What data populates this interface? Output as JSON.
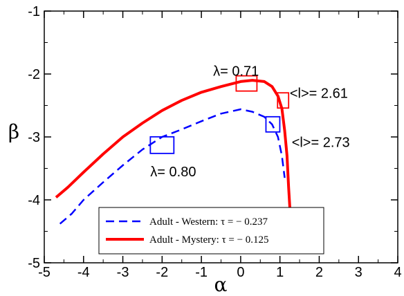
{
  "chart_data": {
    "type": "line",
    "title": "",
    "xlabel": "α",
    "ylabel": "β",
    "xlim": [
      -5,
      4
    ],
    "ylim": [
      -5,
      -1
    ],
    "xticks": [
      -5,
      -4,
      -3,
      -2,
      -1,
      0,
      1,
      2,
      3,
      4
    ],
    "yticks": [
      -5,
      -4,
      -3,
      -2,
      -1
    ],
    "xtick_labels": [
      "-5",
      "-4",
      "-3",
      "-2",
      "-1",
      "0",
      "1",
      "2",
      "3",
      "4"
    ],
    "ytick_labels": [
      "-5",
      "-4",
      "-3",
      "-2",
      "-1"
    ],
    "grid": false,
    "legend_position": "bottom-center",
    "series": [
      {
        "name": "Adult - Western: τ = − 0.237",
        "color": "#0000ff",
        "style": "dashed",
        "x": [
          -4.6,
          -4.3,
          -4.0,
          -3.5,
          -3.0,
          -2.5,
          -2.0,
          -1.5,
          -1.0,
          -0.5,
          0.0,
          0.3,
          0.6,
          0.8,
          0.95,
          1.05,
          1.12
        ],
        "y": [
          -4.38,
          -4.22,
          -4.0,
          -3.72,
          -3.45,
          -3.2,
          -3.0,
          -2.88,
          -2.75,
          -2.63,
          -2.56,
          -2.6,
          -2.68,
          -2.8,
          -3.0,
          -3.3,
          -3.65
        ]
      },
      {
        "name": "Adult - Mystery: τ = − 0.125",
        "color": "#ff0000",
        "style": "solid",
        "x": [
          -4.7,
          -4.4,
          -4.0,
          -3.5,
          -3.0,
          -2.5,
          -2.0,
          -1.5,
          -1.0,
          -0.5,
          0.0,
          0.3,
          0.6,
          0.8,
          0.95,
          1.05,
          1.12,
          1.18,
          1.22,
          1.26
        ],
        "y": [
          -3.96,
          -3.8,
          -3.56,
          -3.27,
          -3.0,
          -2.78,
          -2.58,
          -2.42,
          -2.29,
          -2.2,
          -2.12,
          -2.1,
          -2.12,
          -2.2,
          -2.35,
          -2.55,
          -2.9,
          -3.3,
          -3.8,
          -4.2
        ]
      }
    ],
    "annotations": [
      {
        "text": "λ= 0.71",
        "x": -0.7,
        "y": -1.95
      },
      {
        "text": "<l>= 2.61",
        "x": 1.25,
        "y": -2.3
      },
      {
        "text": "<l>= 2.73",
        "x": 1.3,
        "y": -3.08
      },
      {
        "text": "λ= 0.80",
        "x": -2.3,
        "y": -3.55
      }
    ],
    "markers": [
      {
        "x": 0.15,
        "y": -2.15,
        "color": "#ff0000"
      },
      {
        "x": 1.08,
        "y": -2.42,
        "color": "#ff0000"
      },
      {
        "x": 0.82,
        "y": -2.8,
        "color": "#0000ff"
      },
      {
        "x": -2.0,
        "y": -3.13,
        "color": "#0000ff"
      }
    ]
  }
}
